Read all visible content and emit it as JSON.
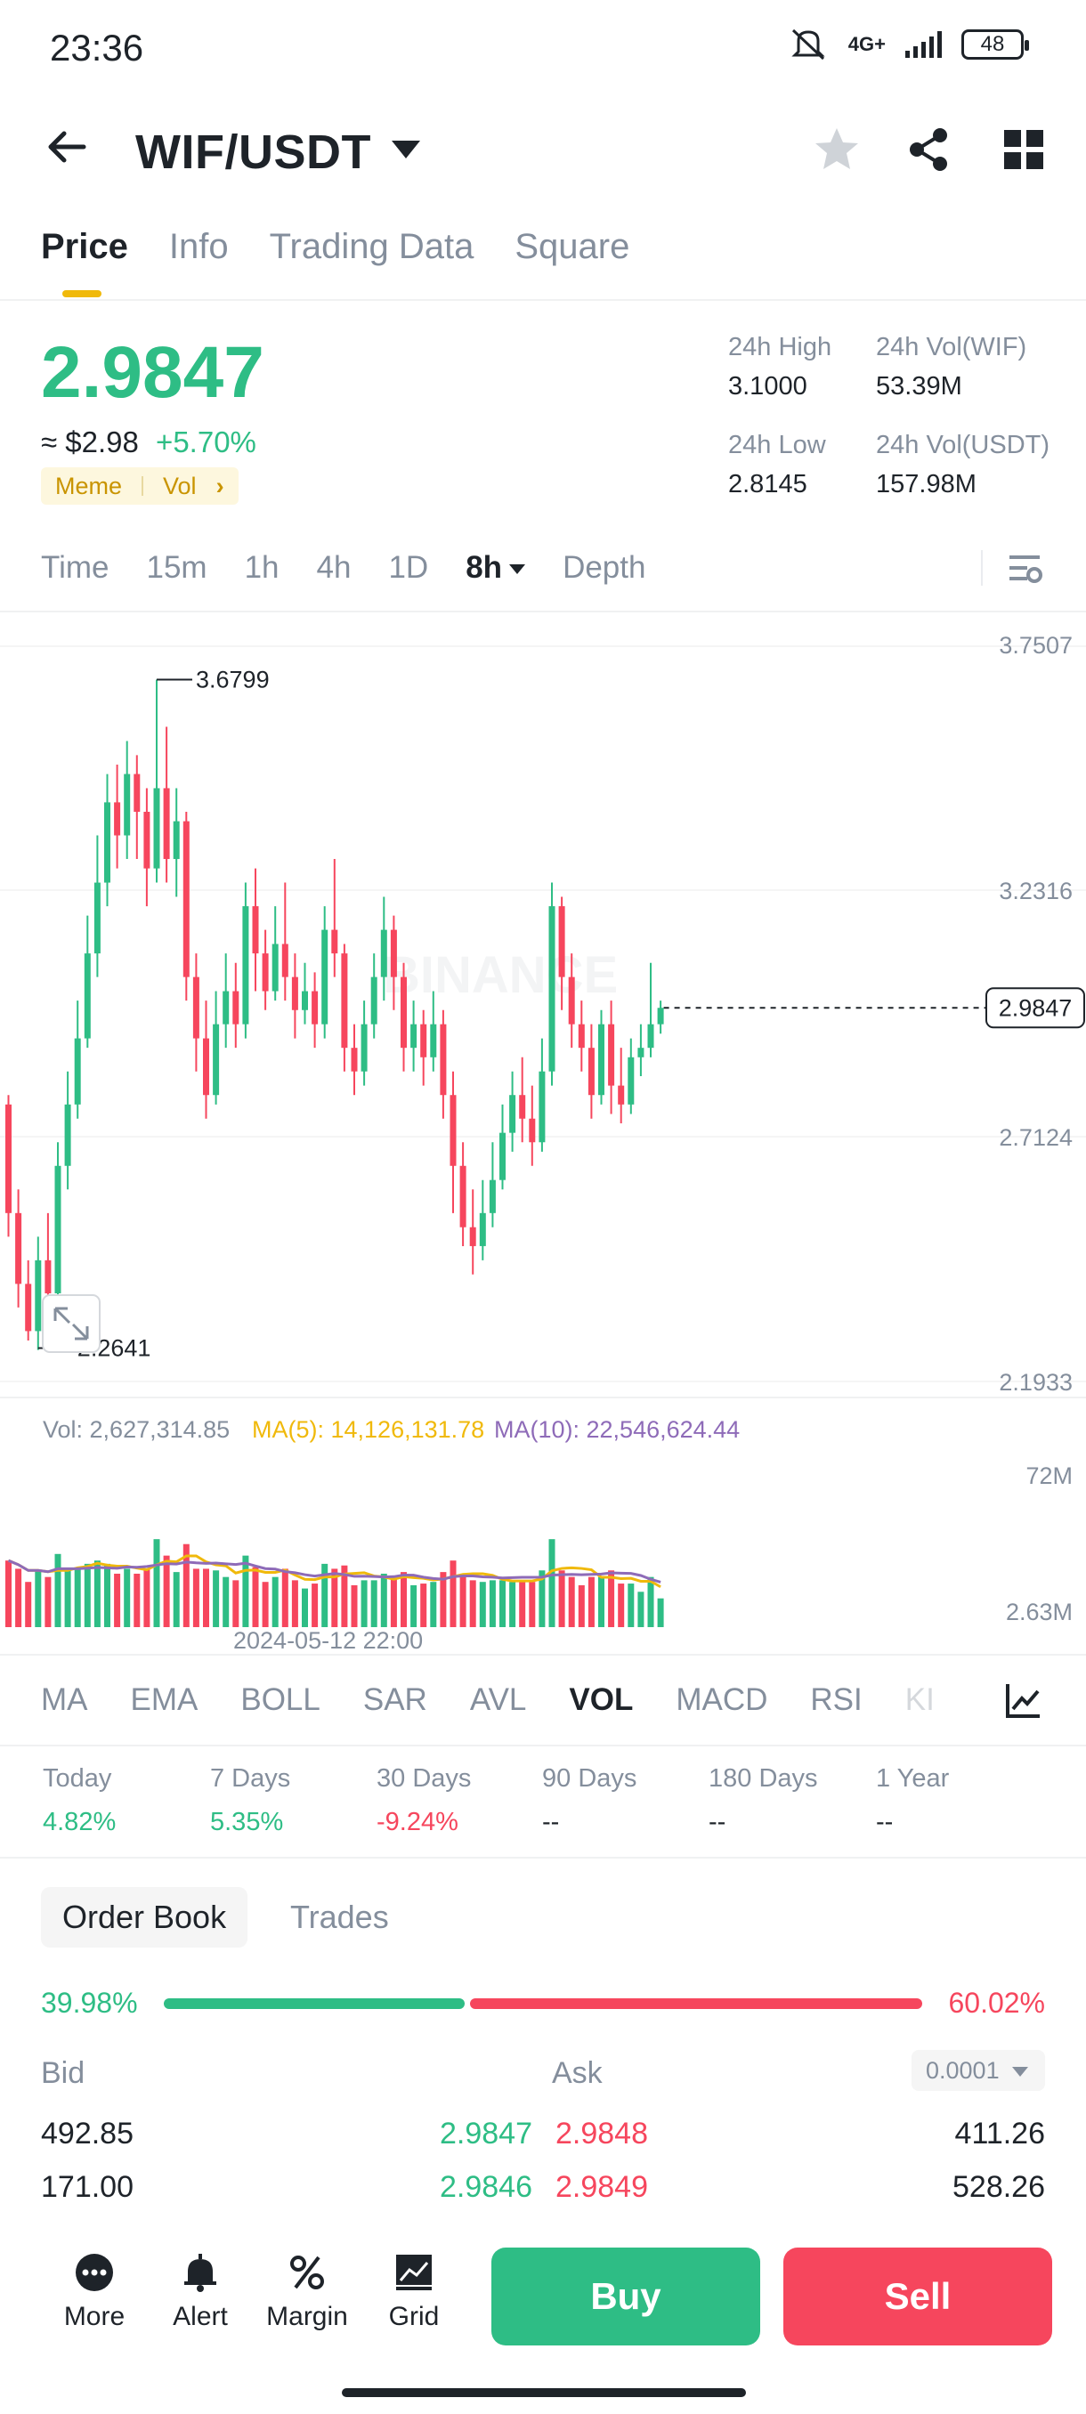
{
  "status_bar": {
    "time": "23:36",
    "network": "4G+",
    "battery": "48"
  },
  "header": {
    "pair": "WIF/USDT"
  },
  "tabs": [
    {
      "label": "Price",
      "active": true
    },
    {
      "label": "Info",
      "active": false
    },
    {
      "label": "Trading Data",
      "active": false
    },
    {
      "label": "Square",
      "active": false
    }
  ],
  "price": {
    "last": "2.9847",
    "usd": "≈ $2.98",
    "change": "+5.70%",
    "tag1": "Meme",
    "tag2": "Vol"
  },
  "stats": {
    "high_label": "24h High",
    "high_value": "3.1000",
    "low_label": "24h Low",
    "low_value": "2.8145",
    "vol_base_label": "24h Vol(WIF)",
    "vol_base_value": "53.39M",
    "vol_quote_label": "24h Vol(USDT)",
    "vol_quote_value": "157.98M"
  },
  "intervals": [
    "Time",
    "15m",
    "1h",
    "4h",
    "1D",
    "8h",
    "Depth"
  ],
  "active_interval": "8h",
  "chart_labels": {
    "axis_top": "3.7507",
    "axis_2": "3.2316",
    "axis_3": "2.7124",
    "axis_bottom": "2.1933",
    "current": "2.9847",
    "high_marker": "3.6799",
    "low_marker": "2.2641",
    "watermark": "BINANCE",
    "vol_line": "Vol: 2,627,314.85",
    "ma5_line": "MA(5): 14,126,131.78",
    "ma10_line": "MA(10): 22,546,624.44",
    "vol_axis_top": "72M",
    "vol_axis_bottom": "2.63M",
    "date_label": "2024-05-12 22:00"
  },
  "colors": {
    "up": "#2ebd85",
    "down": "#f6465d",
    "ma5": "#f0b90b",
    "ma10": "#8e6bb8",
    "accent": "#f0b90b"
  },
  "chart_data": {
    "type": "candlestick",
    "ylim": [
      2.1933,
      3.7507
    ],
    "current_price": 2.9847,
    "marked_high": 3.6799,
    "marked_low": 2.2641,
    "candles": [
      [
        2.78,
        2.55,
        2.8,
        2.5
      ],
      [
        2.55,
        2.4,
        2.6,
        2.35
      ],
      [
        2.4,
        2.3,
        2.45,
        2.28
      ],
      [
        2.3,
        2.45,
        2.5,
        2.26
      ],
      [
        2.45,
        2.38,
        2.55,
        2.35
      ],
      [
        2.38,
        2.65,
        2.7,
        2.36
      ],
      [
        2.65,
        2.78,
        2.85,
        2.6
      ],
      [
        2.78,
        2.92,
        3.0,
        2.75
      ],
      [
        2.92,
        3.1,
        3.18,
        2.9
      ],
      [
        3.1,
        3.25,
        3.35,
        3.05
      ],
      [
        3.25,
        3.42,
        3.48,
        3.2
      ],
      [
        3.42,
        3.35,
        3.5,
        3.28
      ],
      [
        3.35,
        3.48,
        3.55,
        3.3
      ],
      [
        3.48,
        3.4,
        3.52,
        3.3
      ],
      [
        3.4,
        3.28,
        3.45,
        3.2
      ],
      [
        3.28,
        3.45,
        3.68,
        3.25
      ],
      [
        3.45,
        3.3,
        3.58,
        3.25
      ],
      [
        3.3,
        3.38,
        3.45,
        3.22
      ],
      [
        3.38,
        3.05,
        3.4,
        3.0
      ],
      [
        3.05,
        2.92,
        3.1,
        2.85
      ],
      [
        2.92,
        2.8,
        3.0,
        2.75
      ],
      [
        2.8,
        2.95,
        3.02,
        2.78
      ],
      [
        2.95,
        3.02,
        3.1,
        2.9
      ],
      [
        3.02,
        2.95,
        3.08,
        2.9
      ],
      [
        2.95,
        3.2,
        3.25,
        2.92
      ],
      [
        3.2,
        3.1,
        3.28,
        3.02
      ],
      [
        3.1,
        3.02,
        3.15,
        2.98
      ],
      [
        3.02,
        3.12,
        3.2,
        3.0
      ],
      [
        3.12,
        3.05,
        3.25,
        3.0
      ],
      [
        3.05,
        2.98,
        3.1,
        2.92
      ],
      [
        2.98,
        3.02,
        3.08,
        2.95
      ],
      [
        3.02,
        2.95,
        3.06,
        2.9
      ],
      [
        2.95,
        3.15,
        3.2,
        2.92
      ],
      [
        3.15,
        3.1,
        3.3,
        3.05
      ],
      [
        3.1,
        2.9,
        3.12,
        2.85
      ],
      [
        2.9,
        2.85,
        2.95,
        2.8
      ],
      [
        2.85,
        2.95,
        3.0,
        2.82
      ],
      [
        2.95,
        3.05,
        3.1,
        2.92
      ],
      [
        3.05,
        3.15,
        3.22,
        3.0
      ],
      [
        3.15,
        3.05,
        3.18,
        2.98
      ],
      [
        3.05,
        2.9,
        3.08,
        2.85
      ],
      [
        2.9,
        2.95,
        3.0,
        2.85
      ],
      [
        2.95,
        2.88,
        2.98,
        2.82
      ],
      [
        2.88,
        2.95,
        3.02,
        2.85
      ],
      [
        2.95,
        2.8,
        2.98,
        2.75
      ],
      [
        2.8,
        2.65,
        2.85,
        2.55
      ],
      [
        2.65,
        2.52,
        2.7,
        2.48
      ],
      [
        2.52,
        2.48,
        2.6,
        2.42
      ],
      [
        2.48,
        2.55,
        2.62,
        2.45
      ],
      [
        2.55,
        2.62,
        2.7,
        2.52
      ],
      [
        2.62,
        2.72,
        2.78,
        2.6
      ],
      [
        2.72,
        2.8,
        2.85,
        2.68
      ],
      [
        2.8,
        2.75,
        2.88,
        2.7
      ],
      [
        2.75,
        2.7,
        2.82,
        2.65
      ],
      [
        2.7,
        2.85,
        2.92,
        2.68
      ],
      [
        2.85,
        3.2,
        3.25,
        2.82
      ],
      [
        3.2,
        3.05,
        3.22,
        2.98
      ],
      [
        3.05,
        2.95,
        3.1,
        2.9
      ],
      [
        2.95,
        2.9,
        3.0,
        2.85
      ],
      [
        2.9,
        2.8,
        2.95,
        2.75
      ],
      [
        2.8,
        2.95,
        2.98,
        2.78
      ],
      [
        2.95,
        2.82,
        3.0,
        2.76
      ],
      [
        2.82,
        2.78,
        2.9,
        2.74
      ],
      [
        2.78,
        2.88,
        2.92,
        2.76
      ],
      [
        2.88,
        2.9,
        2.95,
        2.84
      ],
      [
        2.9,
        2.95,
        3.08,
        2.88
      ],
      [
        2.95,
        2.9847,
        3.0,
        2.93
      ]
    ],
    "volume_ylim": [
      2630000,
      72000000
    ]
  },
  "indicators": [
    "MA",
    "EMA",
    "BOLL",
    "SAR",
    "AVL",
    "VOL",
    "MACD",
    "RSI",
    "KI"
  ],
  "active_indicator": "VOL",
  "performance": [
    {
      "label": "Today",
      "value": "4.82%",
      "dir": "up"
    },
    {
      "label": "7 Days",
      "value": "5.35%",
      "dir": "up"
    },
    {
      "label": "30 Days",
      "value": "-9.24%",
      "dir": "down"
    },
    {
      "label": "90 Days",
      "value": "--",
      "dir": "none"
    },
    {
      "label": "180 Days",
      "value": "--",
      "dir": "none"
    },
    {
      "label": "1 Year",
      "value": "--",
      "dir": "none"
    }
  ],
  "order_book": {
    "tab_active": "Order Book",
    "tab_other": "Trades",
    "bid_pct": "39.98%",
    "ask_pct": "60.02%",
    "bid_ratio": 0.3998,
    "bid_header": "Bid",
    "ask_header": "Ask",
    "precision": "0.0001",
    "rows": [
      {
        "bid_qty": "492.85",
        "bid_price": "2.9847",
        "ask_price": "2.9848",
        "ask_qty": "411.26"
      },
      {
        "bid_qty": "171.00",
        "bid_price": "2.9846",
        "ask_price": "2.9849",
        "ask_qty": "528.26"
      }
    ]
  },
  "bottom_nav": {
    "more": "More",
    "alert": "Alert",
    "margin": "Margin",
    "grid": "Grid",
    "buy": "Buy",
    "sell": "Sell"
  }
}
